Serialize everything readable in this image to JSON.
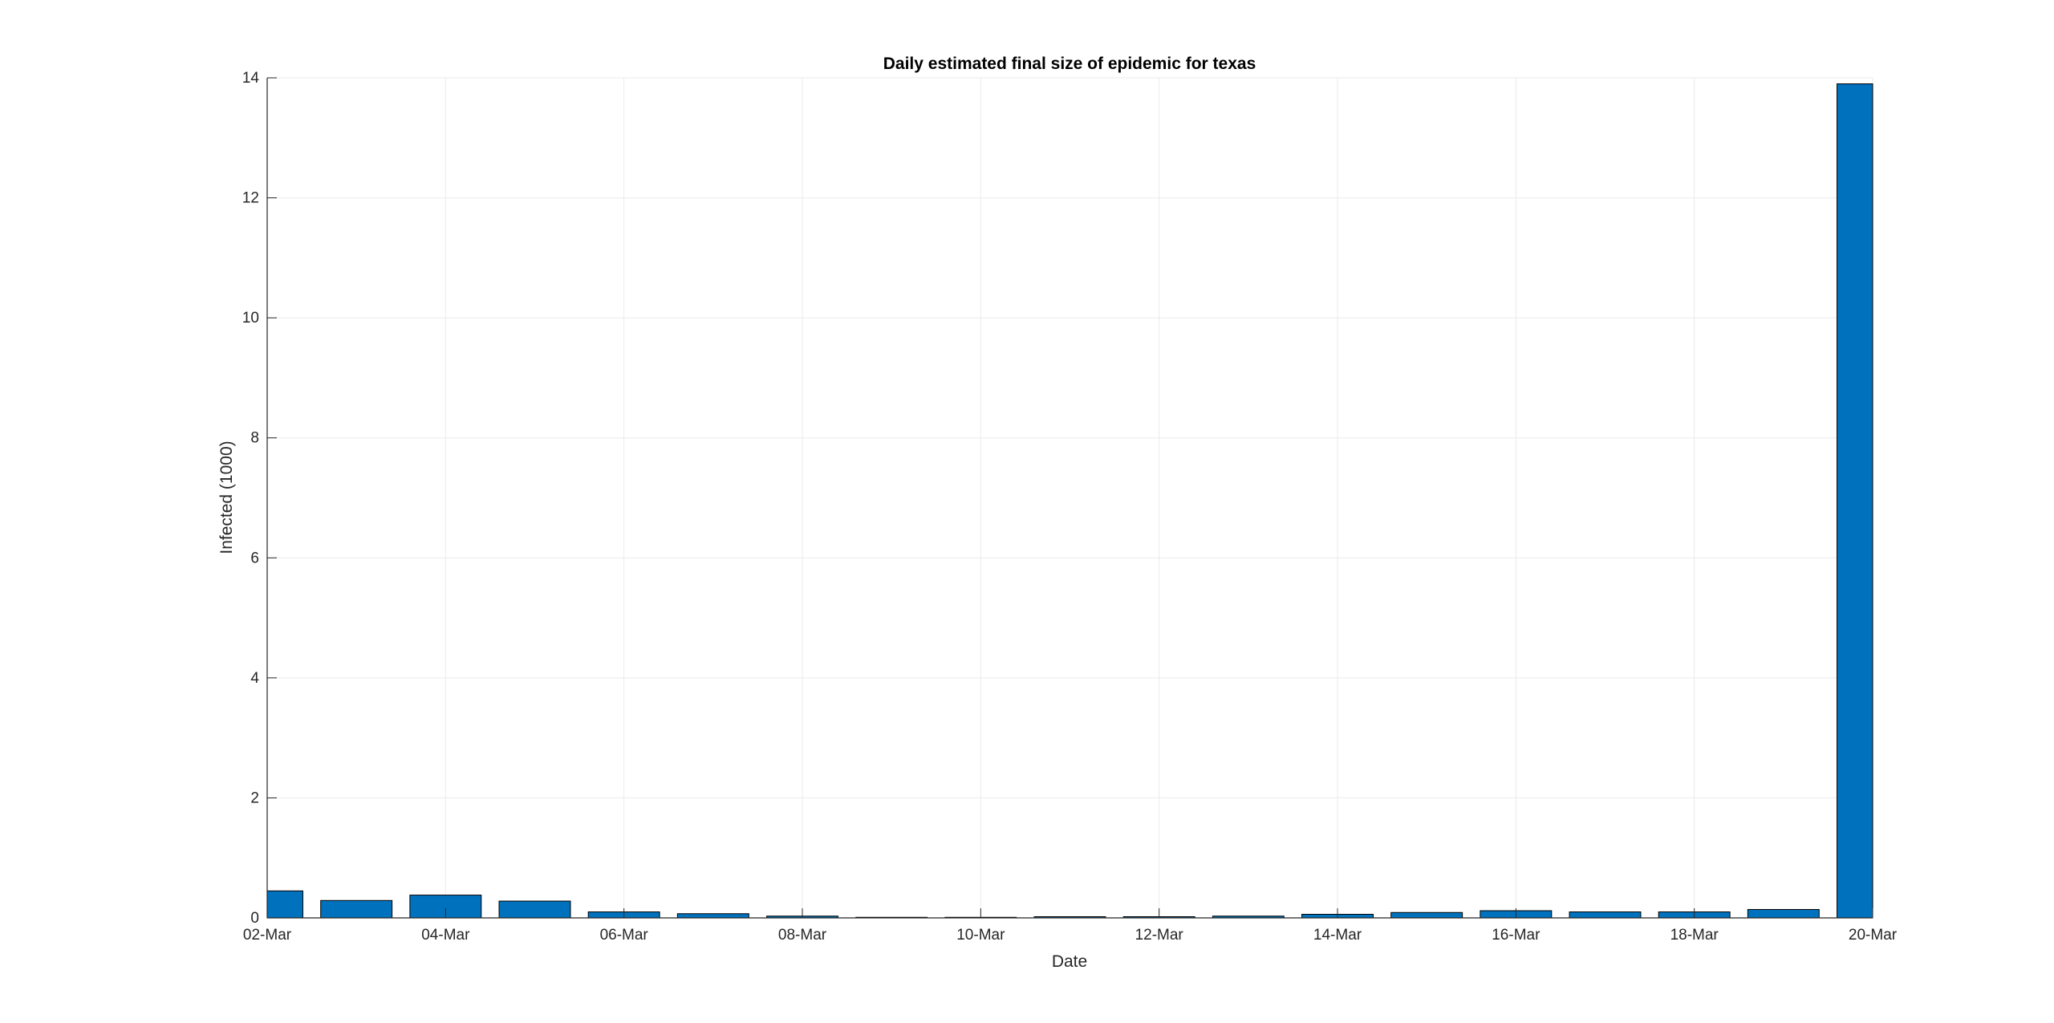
{
  "chart_data": {
    "type": "bar",
    "title": "Daily estimated final size of epidemic for texas",
    "xlabel": "Date",
    "ylabel": "Infected (1000)",
    "ylim": [
      0,
      14
    ],
    "yticks": [
      0,
      2,
      4,
      6,
      8,
      10,
      12,
      14
    ],
    "xlim": [
      "02-Mar",
      "20-Mar"
    ],
    "xticks": [
      "02-Mar",
      "04-Mar",
      "06-Mar",
      "08-Mar",
      "10-Mar",
      "12-Mar",
      "14-Mar",
      "16-Mar",
      "18-Mar",
      "20-Mar"
    ],
    "grid": true,
    "bar_color": "#0072BD",
    "categories": [
      "02-Mar",
      "03-Mar",
      "04-Mar",
      "05-Mar",
      "06-Mar",
      "07-Mar",
      "08-Mar",
      "09-Mar",
      "10-Mar",
      "11-Mar",
      "12-Mar",
      "13-Mar",
      "14-Mar",
      "15-Mar",
      "16-Mar",
      "17-Mar",
      "18-Mar",
      "19-Mar",
      "20-Mar"
    ],
    "values": [
      0.45,
      0.29,
      0.38,
      0.28,
      0.1,
      0.07,
      0.03,
      0.01,
      0.01,
      0.02,
      0.02,
      0.03,
      0.06,
      0.09,
      0.12,
      0.1,
      0.1,
      0.14,
      13.9
    ]
  }
}
